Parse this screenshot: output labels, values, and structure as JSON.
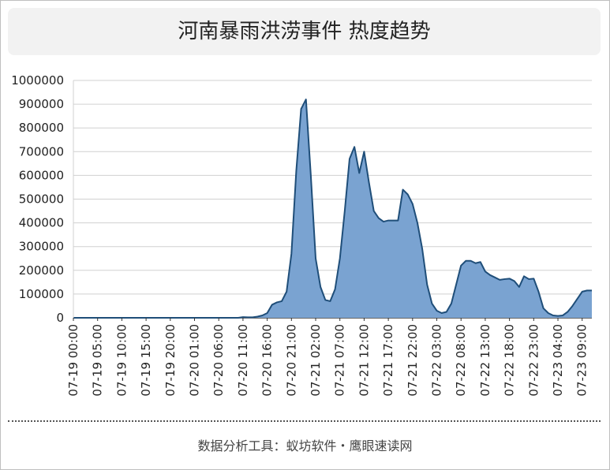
{
  "page": {
    "title": "河南暴雨洪涝事件 热度趋势"
  },
  "footer": {
    "text": "数据分析工具：蚁坊软件・鹰眼速读网"
  },
  "chart_data": {
    "type": "area",
    "title": "河南暴雨洪涝事件 热度趋势",
    "xlabel": "",
    "ylabel": "",
    "ylim": [
      0,
      1000000
    ],
    "yticks": [
      0,
      100000,
      200000,
      300000,
      400000,
      500000,
      600000,
      700000,
      800000,
      900000,
      1000000
    ],
    "grid": true,
    "fill_color": "#7aa3d1",
    "line_color": "#1f4e79",
    "x": [
      "07-19 00:00",
      "07-19 01:00",
      "07-19 02:00",
      "07-19 03:00",
      "07-19 04:00",
      "07-19 05:00",
      "07-19 06:00",
      "07-19 07:00",
      "07-19 08:00",
      "07-19 09:00",
      "07-19 10:00",
      "07-19 11:00",
      "07-19 12:00",
      "07-19 13:00",
      "07-19 14:00",
      "07-19 15:00",
      "07-19 16:00",
      "07-19 17:00",
      "07-19 18:00",
      "07-19 19:00",
      "07-19 20:00",
      "07-19 21:00",
      "07-19 22:00",
      "07-19 23:00",
      "07-20 00:00",
      "07-20 01:00",
      "07-20 02:00",
      "07-20 03:00",
      "07-20 04:00",
      "07-20 05:00",
      "07-20 06:00",
      "07-20 07:00",
      "07-20 08:00",
      "07-20 09:00",
      "07-20 10:00",
      "07-20 11:00",
      "07-20 12:00",
      "07-20 13:00",
      "07-20 14:00",
      "07-20 15:00",
      "07-20 16:00",
      "07-20 17:00",
      "07-20 18:00",
      "07-20 19:00",
      "07-20 20:00",
      "07-20 21:00",
      "07-20 22:00",
      "07-20 23:00",
      "07-21 00:00",
      "07-21 01:00",
      "07-21 02:00",
      "07-21 03:00",
      "07-21 04:00",
      "07-21 05:00",
      "07-21 06:00",
      "07-21 07:00",
      "07-21 08:00",
      "07-21 09:00",
      "07-21 10:00",
      "07-21 11:00",
      "07-21 12:00",
      "07-21 13:00",
      "07-21 14:00",
      "07-21 15:00",
      "07-21 16:00",
      "07-21 17:00",
      "07-21 18:00",
      "07-21 19:00",
      "07-21 20:00",
      "07-21 21:00",
      "07-21 22:00",
      "07-21 23:00",
      "07-22 00:00",
      "07-22 01:00",
      "07-22 02:00",
      "07-22 03:00",
      "07-22 04:00",
      "07-22 05:00",
      "07-22 06:00",
      "07-22 07:00",
      "07-22 08:00",
      "07-22 09:00",
      "07-22 10:00",
      "07-22 11:00",
      "07-22 12:00",
      "07-22 13:00",
      "07-22 14:00",
      "07-22 15:00",
      "07-22 16:00",
      "07-22 17:00",
      "07-22 18:00",
      "07-22 19:00",
      "07-22 20:00",
      "07-22 21:00",
      "07-22 22:00",
      "07-22 23:00",
      "07-23 00:00",
      "07-23 01:00",
      "07-23 02:00",
      "07-23 03:00",
      "07-23 04:00",
      "07-23 05:00",
      "07-23 06:00",
      "07-23 07:00",
      "07-23 08:00",
      "07-23 09:00",
      "07-23 10:00",
      "07-23 11:00"
    ],
    "tick_labels": [
      "07-19 00:00",
      "07-19 05:00",
      "07-19 10:00",
      "07-19 15:00",
      "07-19 20:00",
      "07-20 01:00",
      "07-20 06:00",
      "07-20 11:00",
      "07-20 16:00",
      "07-20 21:00",
      "07-21 02:00",
      "07-21 07:00",
      "07-21 12:00",
      "07-21 17:00",
      "07-21 22:00",
      "07-22 03:00",
      "07-22 08:00",
      "07-22 13:00",
      "07-22 18:00",
      "07-22 23:00",
      "07-23 04:00",
      "07-23 09:00"
    ],
    "values": [
      0,
      0,
      0,
      0,
      0,
      0,
      0,
      0,
      0,
      0,
      0,
      0,
      0,
      0,
      0,
      0,
      0,
      0,
      0,
      0,
      0,
      0,
      0,
      0,
      0,
      0,
      0,
      0,
      0,
      0,
      0,
      0,
      0,
      0,
      0,
      3000,
      2000,
      2000,
      5000,
      10000,
      20000,
      55000,
      65000,
      70000,
      110000,
      270000,
      620000,
      880000,
      920000,
      600000,
      250000,
      130000,
      75000,
      70000,
      120000,
      250000,
      450000,
      670000,
      720000,
      610000,
      700000,
      570000,
      450000,
      420000,
      405000,
      410000,
      410000,
      410000,
      540000,
      520000,
      480000,
      400000,
      290000,
      140000,
      60000,
      30000,
      20000,
      25000,
      60000,
      140000,
      220000,
      240000,
      240000,
      230000,
      235000,
      195000,
      180000,
      170000,
      160000,
      163000,
      165000,
      155000,
      130000,
      175000,
      163000,
      165000,
      110000,
      40000,
      20000,
      10000,
      8000,
      10000,
      25000,
      50000,
      80000,
      110000,
      115000,
      115000
    ]
  }
}
